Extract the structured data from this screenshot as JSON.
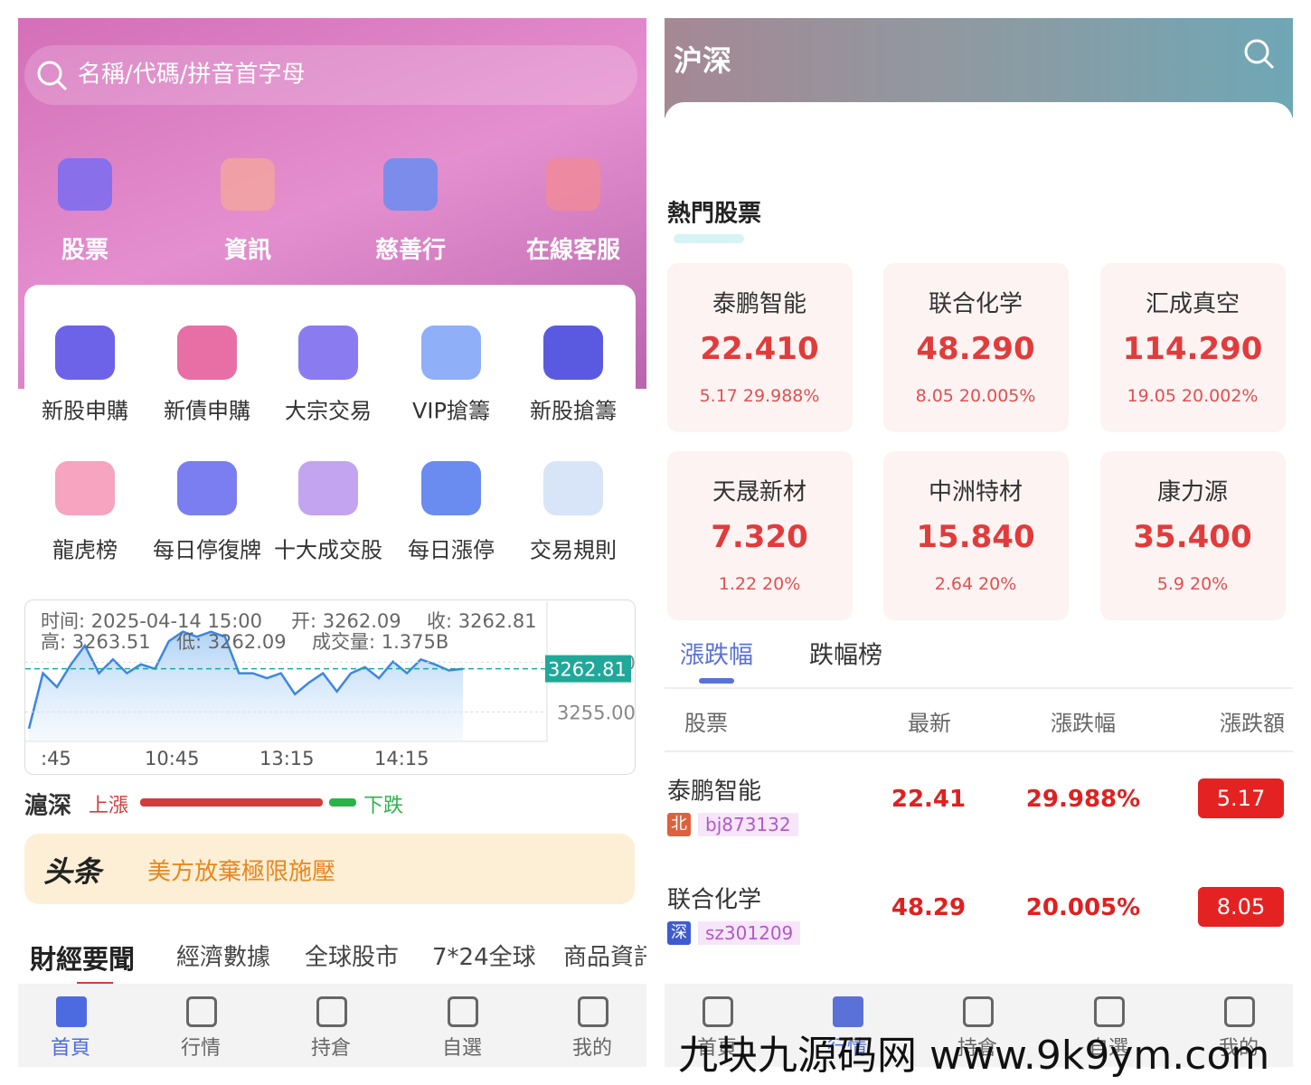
{
  "left": {
    "search_placeholder": "名稱/代碼/拼音首字母",
    "top_menu": [
      "股票",
      "資訊",
      "慈善行",
      "在線客服"
    ],
    "grid_menu": [
      "新股申購",
      "新債申購",
      "大宗交易",
      "VIP搶籌",
      "新股搶籌",
      "龍虎榜",
      "每日停復牌",
      "十大成交股",
      "每日漲停",
      "交易規則"
    ],
    "chart": {
      "type": "line",
      "info": [
        "时间: 2025-04-14 15:00",
        "开: 3262.09",
        "收: 3262.81",
        "高: 3263.51",
        "低: 3262.09",
        "成交量: 1.375B"
      ],
      "current": {
        "value": 3262.81,
        "label": "3262.81"
      },
      "ylim": [
        3250,
        3275
      ],
      "yticks": [
        {
          "value": 3255,
          "label": "3255.00"
        },
        {
          "value": 3264,
          "label": "3264.00"
        }
      ],
      "xticks": [
        ":45",
        "10:45",
        "13:15",
        "14:15"
      ],
      "values": [
        3252.0,
        3262.0,
        3259.5,
        3263.6,
        3267.0,
        3262.0,
        3264.5,
        3262.0,
        3263.6,
        3262.8,
        3267.8,
        3269.5,
        3268.6,
        3269.5,
        3268.6,
        3262.0,
        3262.0,
        3261.1,
        3262.0,
        3258.2,
        3260.3,
        3262.0,
        3258.7,
        3262.0,
        3263.1,
        3261.1,
        3264.1,
        3262.0,
        3264.5,
        3263.6,
        3262.5,
        3262.8
      ]
    },
    "market": {
      "name": "滬深",
      "up": "上漲",
      "down": "下跌"
    },
    "headline": {
      "tag": "头条",
      "text": "美方放棄極限施壓"
    },
    "news_tabs": [
      "財經要聞",
      "經濟數據",
      "全球股市",
      "7*24全球",
      "商品資訊"
    ],
    "nav": [
      "首頁",
      "行情",
      "持倉",
      "自選",
      "我的"
    ]
  },
  "right": {
    "title": "沪深",
    "hot_title": "熱門股票",
    "hot": [
      {
        "name": "泰鹏智能",
        "price": "22.410",
        "change": "5.17",
        "pct": "29.988%"
      },
      {
        "name": "联合化学",
        "price": "48.290",
        "change": "8.05",
        "pct": "20.005%"
      },
      {
        "name": "汇成真空",
        "price": "114.290",
        "change": "19.05",
        "pct": "20.002%"
      },
      {
        "name": "天晟新材",
        "price": "7.320",
        "change": "1.22",
        "pct": "20%"
      },
      {
        "name": "中洲特材",
        "price": "15.840",
        "change": "2.64",
        "pct": "20%"
      },
      {
        "name": "康力源",
        "price": "35.400",
        "change": "5.9",
        "pct": "20%"
      }
    ],
    "tabs": [
      "漲跌幅",
      "跌幅榜"
    ],
    "table": {
      "header": [
        "股票",
        "最新",
        "漲跌幅",
        "漲跌額"
      ],
      "rows": [
        {
          "name": "泰鹏智能",
          "market": "北",
          "code": "bj873132",
          "price": "22.41",
          "pct": "29.988%",
          "change": "5.17"
        },
        {
          "name": "联合化学",
          "market": "深",
          "code": "sz301209",
          "price": "48.29",
          "pct": "20.005%",
          "change": "8.05"
        }
      ]
    },
    "nav": [
      "首頁",
      "行情",
      "持倉",
      "自選",
      "我的"
    ]
  },
  "watermark": "九块九源码网 www.9k9ym.com"
}
